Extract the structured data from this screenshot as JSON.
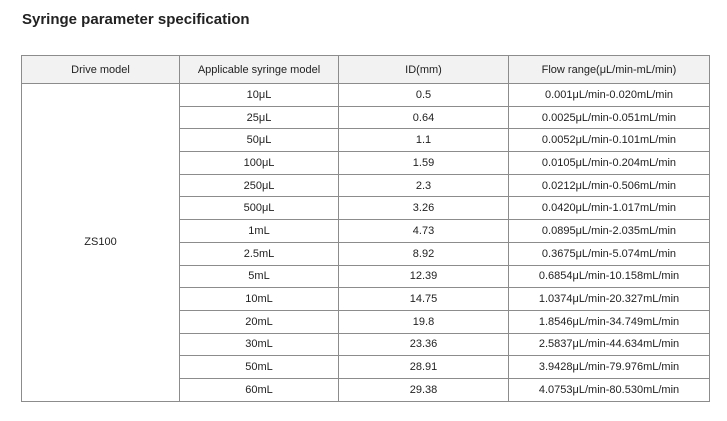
{
  "header": {
    "title": "Syringe parameter specification"
  },
  "table": {
    "columns": [
      "Drive model",
      "Applicable syringe model",
      "ID(mm)",
      "Flow range(μL/min-mL/min)"
    ],
    "drive_model": "ZS100",
    "rows": [
      [
        "10μL",
        "0.5",
        "0.001μL/min-0.020mL/min"
      ],
      [
        "25μL",
        "0.64",
        "0.0025μL/min-0.051mL/min"
      ],
      [
        "50μL",
        "1.1",
        "0.0052μL/min-0.101mL/min"
      ],
      [
        "100μL",
        "1.59",
        "0.0105μL/min-0.204mL/min"
      ],
      [
        "250μL",
        "2.3",
        "0.0212μL/min-0.506mL/min"
      ],
      [
        "500μL",
        "3.26",
        "0.0420μL/min-1.017mL/min"
      ],
      [
        "1mL",
        "4.73",
        "0.0895μL/min-2.035mL/min"
      ],
      [
        "2.5mL",
        "8.92",
        "0.3675μL/min-5.074mL/min"
      ],
      [
        "5mL",
        "12.39",
        "0.6854μL/min-10.158mL/min"
      ],
      [
        "10mL",
        "14.75",
        "1.0374μL/min-20.327mL/min"
      ],
      [
        "20mL",
        "19.8",
        "1.8546μL/min-34.749mL/min"
      ],
      [
        "30mL",
        "23.36",
        "2.5837μL/min-44.634mL/min"
      ],
      [
        "50mL",
        "28.91",
        "3.9428μL/min-79.976mL/min"
      ],
      [
        "60mL",
        "29.38",
        "4.0753μL/min-80.530mL/min"
      ]
    ]
  }
}
